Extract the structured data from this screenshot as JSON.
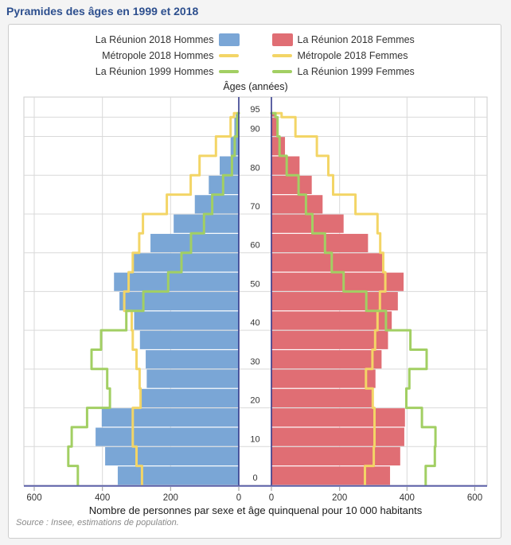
{
  "page_title": "Pyramides des âges en 1999 et 2018",
  "legend": {
    "items": [
      {
        "label": "La Réunion 2018 Hommes",
        "color": "#7aa6d6",
        "shape": "rect"
      },
      {
        "label": "La Réunion 2018 Femmes",
        "color": "#e06e74",
        "shape": "rect"
      },
      {
        "label": "Métropole 2018 Hommes",
        "color": "#f3d566",
        "shape": "line"
      },
      {
        "label": "Métropole 2018 Femmes",
        "color": "#f3d566",
        "shape": "line"
      },
      {
        "label": "La Réunion 1999 Hommes",
        "color": "#a2cf63",
        "shape": "line"
      },
      {
        "label": "La Réunion 1999 Femmes",
        "color": "#a2cf63",
        "shape": "line"
      }
    ]
  },
  "axis": {
    "ages_title": "Âges (années)",
    "age_ticks": [
      0,
      10,
      20,
      30,
      40,
      50,
      60,
      70,
      80,
      90,
      95
    ],
    "left_ticks": [
      600,
      400,
      200,
      0
    ],
    "right_ticks": [
      0,
      200,
      400,
      600
    ],
    "x_title": "Nombre de personnes par sexe et âge quinquenal pour 10 000 habitants"
  },
  "source": "Source : Insee, estimations de population.",
  "chart_data": {
    "type": "bar",
    "subtype": "population-pyramid",
    "title": "Pyramides des âges en 1999 et 2018",
    "unit": "nombre de personnes par sexe et âge quinquennal pour 10 000 habitants",
    "xlim_per_side": [
      0,
      600
    ],
    "grid": true,
    "age_groups": [
      "0-4",
      "5-9",
      "10-14",
      "15-19",
      "20-24",
      "25-29",
      "30-34",
      "35-39",
      "40-44",
      "45-49",
      "50-54",
      "55-59",
      "60-64",
      "65-69",
      "70-74",
      "75-79",
      "80-84",
      "85-89",
      "90-94",
      "95+"
    ],
    "series": [
      {
        "name": "La Réunion 2018 Hommes",
        "side": "left",
        "style": "bar",
        "color": "#7aa6d6",
        "values": [
          355,
          392,
          420,
          402,
          289,
          270,
          273,
          290,
          307,
          350,
          366,
          310,
          259,
          191,
          129,
          88,
          56,
          24,
          13,
          9
        ]
      },
      {
        "name": "La Réunion 2018 Femmes",
        "side": "right",
        "style": "bar",
        "color": "#e06e74",
        "values": [
          350,
          380,
          392,
          394,
          300,
          307,
          325,
          344,
          355,
          373,
          390,
          330,
          285,
          213,
          151,
          119,
          83,
          40,
          20,
          14
        ]
      },
      {
        "name": "Métropole 2018 Hommes",
        "side": "left",
        "style": "line",
        "color": "#f3d566",
        "values": [
          284,
          300,
          311,
          311,
          288,
          291,
          300,
          311,
          314,
          336,
          323,
          311,
          292,
          281,
          211,
          141,
          115,
          67,
          24,
          14
        ]
      },
      {
        "name": "Métropole 2018 Femmes",
        "side": "right",
        "style": "line",
        "color": "#f3d566",
        "values": [
          276,
          302,
          304,
          304,
          299,
          279,
          298,
          306,
          313,
          320,
          336,
          330,
          321,
          313,
          248,
          182,
          168,
          134,
          71,
          30
        ]
      },
      {
        "name": "La Réunion 1999 Hommes",
        "side": "left",
        "style": "line",
        "color": "#a2cf63",
        "values": [
          472,
          500,
          490,
          445,
          378,
          386,
          432,
          404,
          330,
          280,
          207,
          168,
          140,
          102,
          78,
          46,
          20,
          12,
          5,
          3
        ]
      },
      {
        "name": "La Réunion 1999 Femmes",
        "side": "right",
        "style": "line",
        "color": "#a2cf63",
        "values": [
          455,
          482,
          484,
          444,
          398,
          407,
          458,
          410,
          338,
          280,
          213,
          178,
          158,
          121,
          102,
          80,
          45,
          24,
          18,
          12
        ]
      }
    ]
  },
  "style": {
    "axis_color": "#333a8c",
    "baseline_color": "#5c60a8",
    "grid_color": "#d9d9d9",
    "frame_color": "#cccccc",
    "tick_color": "#999999",
    "label_color": "#333333"
  }
}
